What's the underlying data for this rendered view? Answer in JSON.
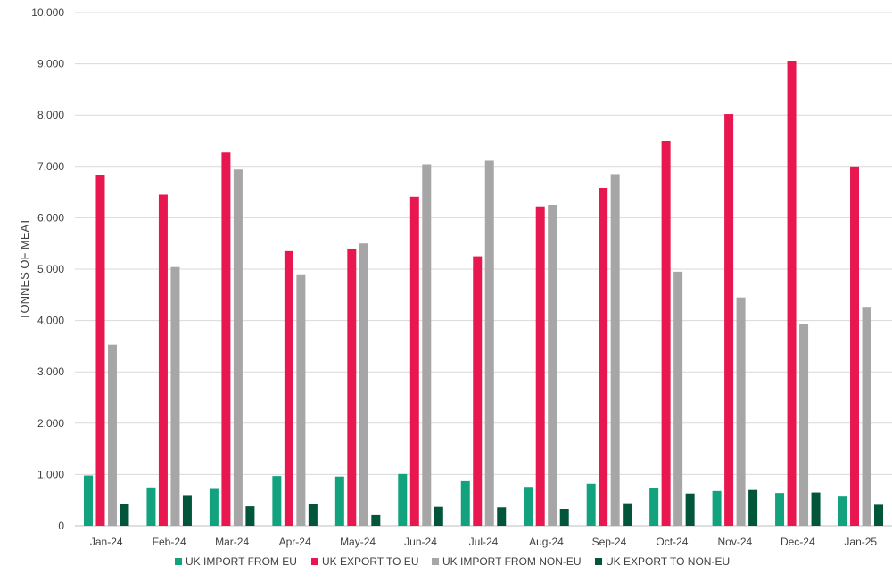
{
  "chart_data": {
    "type": "bar",
    "title": "",
    "xlabel": "",
    "ylabel": "TONNES OF MEAT",
    "ylim": [
      0,
      10000
    ],
    "yticks": [
      0,
      1000,
      2000,
      3000,
      4000,
      5000,
      6000,
      7000,
      8000,
      9000,
      10000
    ],
    "ytick_labels": [
      "0",
      "1,000",
      "2,000",
      "3,000",
      "4,000",
      "5,000",
      "6,000",
      "7,000",
      "8,000",
      "9,000",
      "10,000"
    ],
    "grid": true,
    "legend_position": "bottom",
    "categories": [
      "Jan-24",
      "Feb-24",
      "Mar-24",
      "Apr-24",
      "May-24",
      "Jun-24",
      "Jul-24",
      "Aug-24",
      "Sep-24",
      "Oct-24",
      "Nov-24",
      "Dec-24",
      "Jan-25"
    ],
    "series": [
      {
        "name": "UK IMPORT FROM EU",
        "color": "#12a37e",
        "values": [
          980,
          750,
          720,
          970,
          960,
          1010,
          870,
          760,
          820,
          730,
          680,
          640,
          570
        ]
      },
      {
        "name": "UK EXPORT TO EU",
        "color": "#e8174f",
        "values": [
          6840,
          6450,
          7270,
          5350,
          5400,
          6410,
          5250,
          6220,
          6580,
          7500,
          8020,
          9060,
          7000
        ]
      },
      {
        "name": "UK IMPORT FROM NON-EU",
        "color": "#a6a6a6",
        "values": [
          3530,
          5040,
          6940,
          4900,
          5500,
          7040,
          7110,
          6250,
          6850,
          4950,
          4450,
          3940,
          4250
        ]
      },
      {
        "name": "UK EXPORT TO NON-EU",
        "color": "#00553a",
        "values": [
          420,
          600,
          380,
          420,
          210,
          370,
          360,
          330,
          440,
          630,
          700,
          650,
          410
        ]
      }
    ]
  }
}
